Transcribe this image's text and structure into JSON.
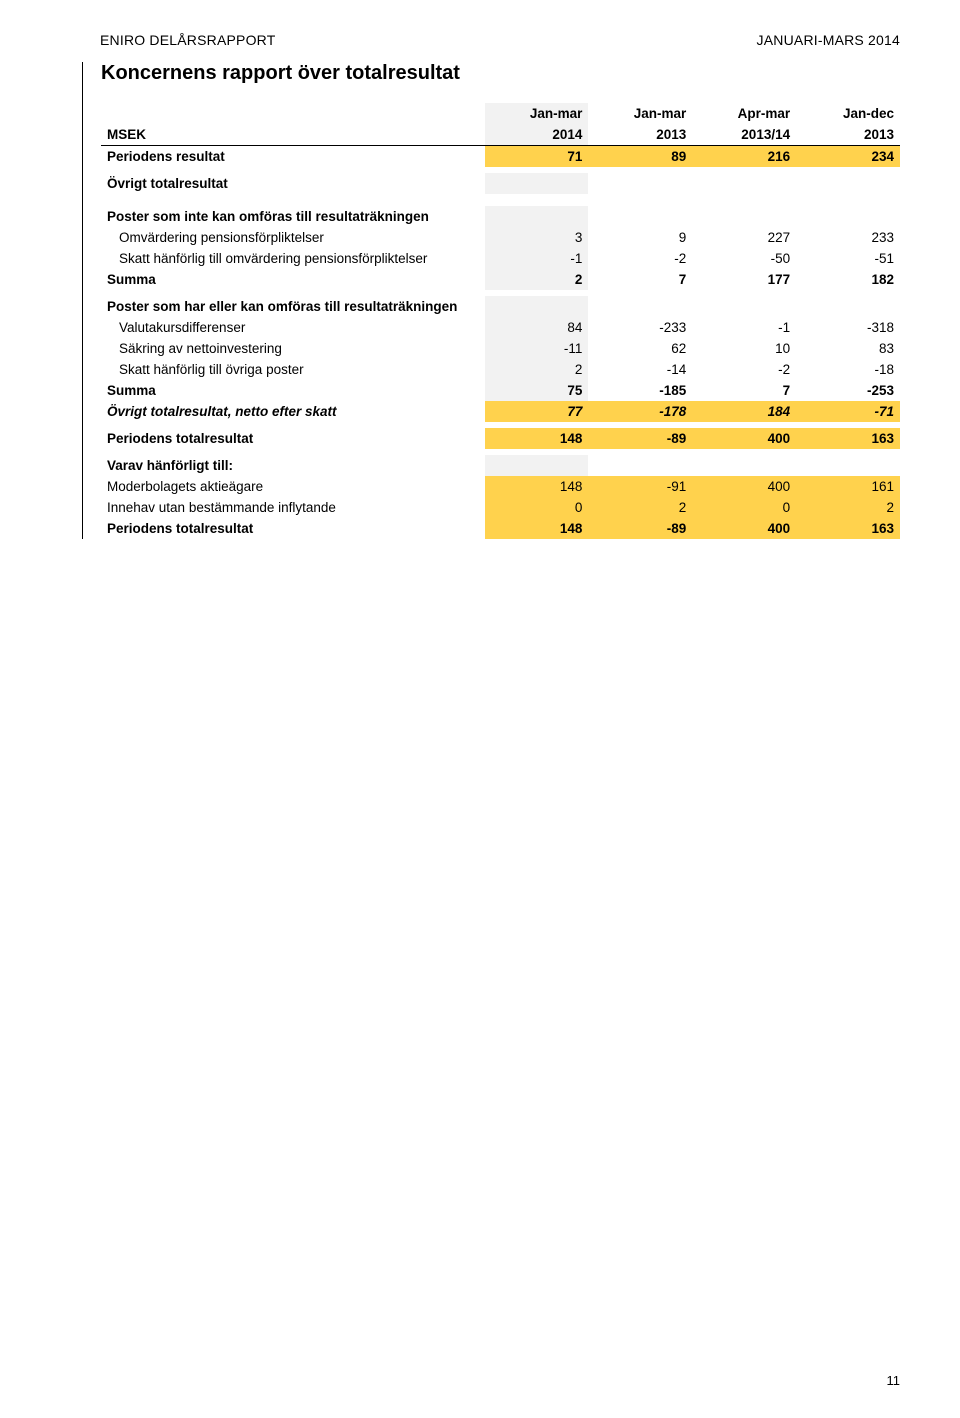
{
  "header": {
    "left": "ENIRO DELÅRSRAPPORT",
    "right": "JANUARI-MARS 2014"
  },
  "section_title": "Koncernens rapport över totalresultat",
  "columns": {
    "period_labels": [
      "Jan-mar",
      "Jan-mar",
      "Apr-mar",
      "Jan-dec"
    ],
    "msek": "MSEK",
    "years": [
      "2014",
      "2013",
      "2013/14",
      "2013"
    ]
  },
  "rows": [
    {
      "type": "data",
      "label": "Periodens resultat",
      "vals": [
        "71",
        "89",
        "216",
        "234"
      ],
      "bold": true,
      "band": true
    },
    {
      "type": "spacer"
    },
    {
      "type": "heading",
      "label": "Övrigt totalresultat"
    },
    {
      "type": "spacer"
    },
    {
      "type": "spacer"
    },
    {
      "type": "heading",
      "label": "Poster som inte kan omföras till resultaträkningen"
    },
    {
      "type": "data",
      "label": "Omvärdering pensionsförpliktelser",
      "vals": [
        "3",
        "9",
        "227",
        "233"
      ],
      "indent": true
    },
    {
      "type": "data",
      "label": "Skatt hänförlig till omvärdering pensionsförpliktelser",
      "vals": [
        "-1",
        "-2",
        "-50",
        "-51"
      ],
      "indent": true
    },
    {
      "type": "data",
      "label": "Summa",
      "vals": [
        "2",
        "7",
        "177",
        "182"
      ],
      "bold": true,
      "indent_bold": true
    },
    {
      "type": "spacer"
    },
    {
      "type": "heading",
      "label": "Poster som har eller kan omföras till resultaträkningen"
    },
    {
      "type": "data",
      "label": "Valutakursdifferenser",
      "vals": [
        "84",
        "-233",
        "-1",
        "-318"
      ],
      "indent": true
    },
    {
      "type": "data",
      "label": "Säkring av nettoinvestering",
      "vals": [
        "-11",
        "62",
        "10",
        "83"
      ],
      "indent": true
    },
    {
      "type": "data",
      "label": "Skatt hänförlig till övriga poster",
      "vals": [
        "2",
        "-14",
        "-2",
        "-18"
      ],
      "indent": true
    },
    {
      "type": "data",
      "label": "Summa",
      "vals": [
        "75",
        "-185",
        "7",
        "-253"
      ],
      "bold": true,
      "indent_bold": true
    },
    {
      "type": "data",
      "label": "Övrigt totalresultat, netto efter skatt",
      "vals": [
        "77",
        "-178",
        "184",
        "-71"
      ],
      "bold": true,
      "italic": true,
      "band": true
    },
    {
      "type": "spacer"
    },
    {
      "type": "data",
      "label": "Periodens totalresultat",
      "vals": [
        "148",
        "-89",
        "400",
        "163"
      ],
      "bold": true,
      "band": true
    },
    {
      "type": "spacer"
    },
    {
      "type": "heading",
      "label": "Varav hänförligt till:"
    },
    {
      "type": "data",
      "label": "Moderbolagets aktieägare",
      "vals": [
        "148",
        "-91",
        "400",
        "161"
      ],
      "band": true
    },
    {
      "type": "data",
      "label": "Innehav utan bestämmande inflytande",
      "vals": [
        "0",
        "2",
        "0",
        "2"
      ],
      "band": true
    },
    {
      "type": "data",
      "label": "Periodens totalresultat",
      "vals": [
        "148",
        "-89",
        "400",
        "163"
      ],
      "bold": true,
      "band": true
    }
  ],
  "page_number": "11",
  "colors": {
    "grey": "#f2f2f2",
    "band": "#ffd24d"
  }
}
